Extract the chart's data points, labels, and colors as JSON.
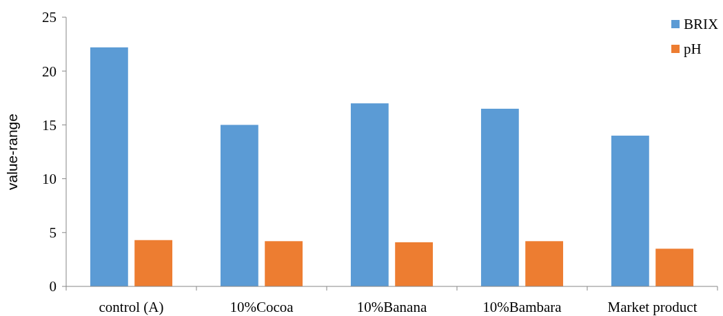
{
  "chart_data": {
    "type": "bar",
    "ylabel": "value-range",
    "categories": [
      "control (A)",
      "10%Cocoa",
      "10%Banana",
      "10%Bambara",
      "Market product"
    ],
    "series": [
      {
        "name": "BRIX",
        "color": "#5b9bd5",
        "values": [
          22.2,
          15.0,
          17.0,
          16.5,
          14.0
        ]
      },
      {
        "name": "pH",
        "color": "#ed7d31",
        "values": [
          4.3,
          4.2,
          4.1,
          4.2,
          3.5
        ]
      }
    ],
    "ylim": [
      0,
      25
    ],
    "yticks": [
      0,
      5,
      10,
      15,
      20,
      25
    ],
    "grid": false,
    "legend": "top right"
  }
}
